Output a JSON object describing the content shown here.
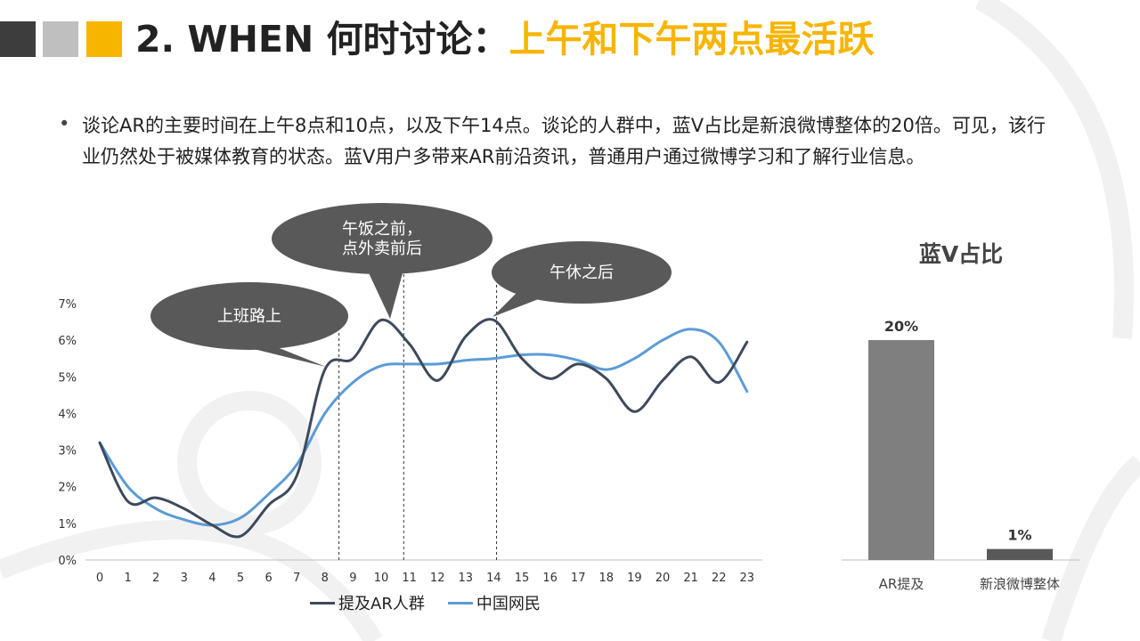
{
  "header": {
    "title_main": "2. WHEN 何时讨论：",
    "title_highlight": "上午和下午两点最活跃",
    "colors": {
      "accent": "#f7b500",
      "dark": "#3d3d3d",
      "gray": "#bfbfbf"
    }
  },
  "bullet": {
    "text": "谈论AR的主要时间在上午8点和10点，以及下午14点。谈论的人群中，蓝V占比是新浪微博整体的20倍。可见，该行业仍然处于被媒体教育的状态。蓝V用户多带来AR前沿资讯，普通用户通过微博学习和了解行业信息。"
  },
  "callouts": [
    {
      "lines": [
        "上班路上"
      ]
    },
    {
      "lines": [
        "午饭之前，",
        "点外卖前后"
      ]
    },
    {
      "lines": [
        "午休之后"
      ]
    }
  ],
  "chart_data": [
    {
      "type": "line",
      "x": [
        0,
        1,
        2,
        3,
        4,
        5,
        6,
        7,
        8,
        9,
        10,
        11,
        12,
        13,
        14,
        15,
        16,
        17,
        18,
        19,
        20,
        21,
        22,
        23
      ],
      "ylim": [
        0,
        7
      ],
      "y_ticks": [
        "0%",
        "1%",
        "2%",
        "3%",
        "4%",
        "5%",
        "6%",
        "7%"
      ],
      "grid": false,
      "legend_position": "bottom",
      "series": [
        {
          "name": "提及AR人群",
          "color": "#3d4a5c",
          "values": [
            3.2,
            1.6,
            1.7,
            1.4,
            0.95,
            0.65,
            1.5,
            2.3,
            5.2,
            5.5,
            6.55,
            5.9,
            4.9,
            6.1,
            6.55,
            5.5,
            4.95,
            5.35,
            4.95,
            4.05,
            4.9,
            5.55,
            4.85,
            5.95
          ]
        },
        {
          "name": "中国网民",
          "color": "#5b9bd5",
          "values": [
            3.2,
            2.0,
            1.4,
            1.1,
            0.95,
            1.15,
            1.8,
            2.6,
            4.0,
            4.85,
            5.3,
            5.35,
            5.35,
            5.45,
            5.5,
            5.6,
            5.6,
            5.45,
            5.2,
            5.5,
            6.0,
            6.3,
            5.95,
            4.6
          ]
        }
      ],
      "reference_hours": [
        8.5,
        10.8,
        14.1
      ]
    },
    {
      "type": "bar",
      "title": "蓝V占比",
      "categories": [
        "AR提及",
        "新浪微博整体"
      ],
      "values": [
        20,
        1
      ],
      "value_labels": [
        "20%",
        "1%"
      ],
      "colors": [
        "#7f7f7f",
        "#595959"
      ]
    }
  ]
}
